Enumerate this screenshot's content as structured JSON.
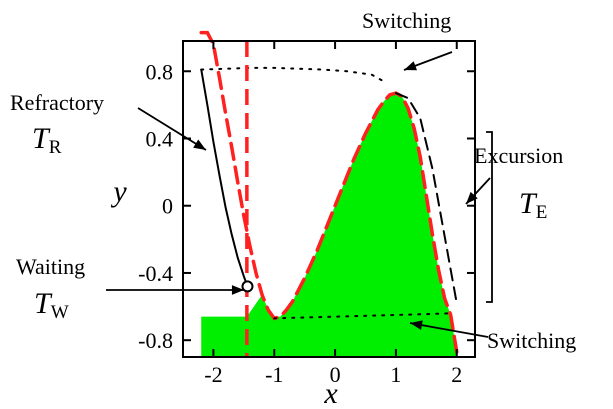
{
  "chart_data": {
    "type": "line",
    "title": "",
    "xlabel": "x",
    "ylabel": "y",
    "xlim": [
      -2.5,
      2.3
    ],
    "ylim": [
      -0.9,
      0.98
    ],
    "xticks": [
      -2,
      -1,
      0,
      1,
      2
    ],
    "xtick_labels": [
      "-2",
      "-1",
      "0",
      "1",
      "2"
    ],
    "yticks": [
      -0.8,
      -0.4,
      0,
      0.4,
      0.8
    ],
    "ytick_labels": [
      "-0.8",
      "-0.4",
      "0",
      "0.4",
      "0.8"
    ],
    "grid": false,
    "legend": "none",
    "colors": {
      "fill": "#00ee00",
      "nullcline": "#ff2020",
      "trajectory": "#000000"
    },
    "series": [
      {
        "style": "red dashed",
        "x": [
          -2.2,
          -2.1,
          -2.0,
          -1.9,
          -1.8,
          -1.7,
          -1.6,
          -1.5,
          -1.4,
          -1.3,
          -1.2,
          -1.1,
          -1.0,
          -0.9,
          -0.8,
          -0.7,
          -0.6,
          -0.5,
          -0.4,
          -0.3,
          -0.2,
          -0.1,
          0.0,
          0.1,
          0.2,
          0.3,
          0.4,
          0.5,
          0.6,
          0.7,
          0.8,
          0.9,
          1.0,
          1.1,
          1.2,
          1.3,
          1.4,
          1.5,
          1.6,
          1.7,
          1.8,
          1.9,
          2.0
        ],
        "y": [
          1.35,
          1.16,
          0.96,
          0.76,
          0.55,
          0.35,
          0.14,
          -0.06,
          -0.24,
          -0.4,
          -0.53,
          -0.62,
          -0.67,
          -0.66,
          -0.62,
          -0.57,
          -0.5,
          -0.43,
          -0.35,
          -0.27,
          -0.18,
          -0.09,
          0.0,
          0.09,
          0.18,
          0.27,
          0.35,
          0.43,
          0.5,
          0.57,
          0.62,
          0.66,
          0.67,
          0.65,
          0.58,
          0.46,
          0.29,
          0.06,
          -0.17,
          -0.38,
          -0.55,
          -0.65,
          -0.87
        ]
      },
      {
        "style": "black solid",
        "x": [
          -2.2,
          -2.1,
          -2.0,
          -1.9,
          -1.8,
          -1.7,
          -1.6,
          -1.5,
          -1.44
        ],
        "y": [
          0.81,
          0.6,
          0.38,
          0.18,
          -0.01,
          -0.17,
          -0.31,
          -0.42,
          -0.48
        ]
      },
      {
        "style": "black dotted",
        "x": [
          -2.2,
          -1.8,
          -1.4,
          -1.0,
          -0.6,
          -0.2,
          0.2,
          0.6,
          0.85
        ],
        "y": [
          0.81,
          0.815,
          0.82,
          0.82,
          0.815,
          0.81,
          0.8,
          0.78,
          0.73
        ]
      },
      {
        "style": "black dashed",
        "x": [
          1.0,
          1.2,
          1.4,
          1.6,
          1.8,
          2.0
        ],
        "y": [
          0.67,
          0.64,
          0.52,
          0.22,
          -0.18,
          -0.58
        ]
      },
      {
        "style": "black dotted",
        "x": [
          -1.0,
          -0.5,
          0.0,
          0.5,
          1.0,
          1.5,
          1.9
        ],
        "y": [
          -0.67,
          -0.665,
          -0.66,
          -0.655,
          -0.65,
          -0.645,
          -0.64
        ]
      }
    ],
    "vertical_line": {
      "x": -1.45,
      "style": "red dashed"
    },
    "marker": {
      "x": -1.44,
      "y": -0.48,
      "shape": "open circle"
    },
    "annotations": {
      "switching_top": "Switching",
      "switching_bottom": "Switching",
      "refractory": "Refractory",
      "waiting": "Waiting",
      "excursion": "Excursion",
      "T": "T",
      "sub_R": "R",
      "sub_W": "W",
      "sub_E": "E"
    }
  }
}
